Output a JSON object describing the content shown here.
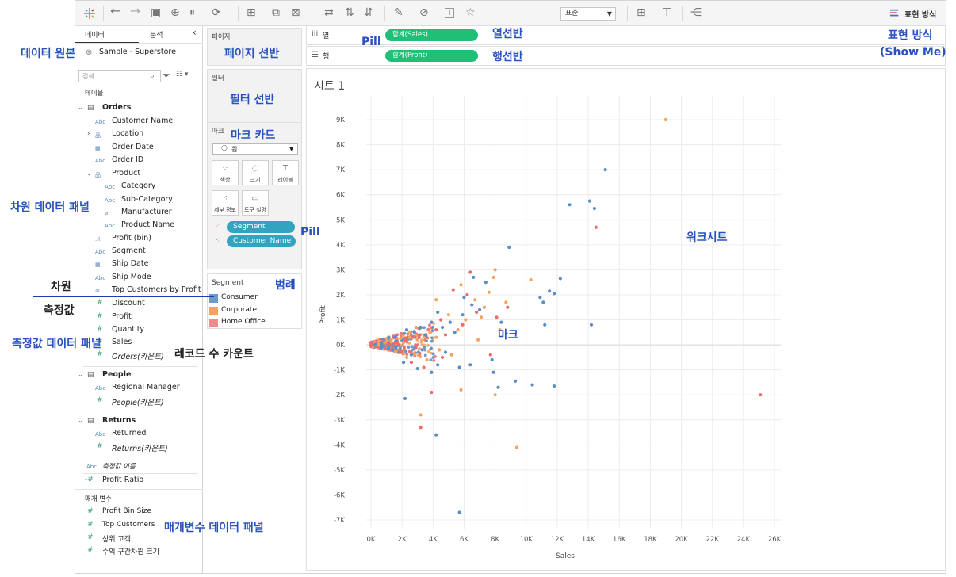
{
  "toolbar": {
    "icons": [
      "tableau-logo-icon",
      "back-arrow-icon",
      "forward-arrow-icon",
      "save-icon",
      "new-datasource-icon",
      "pause-icon",
      "refresh-icon",
      "new-sheet-icon",
      "duplicate-icon",
      "clear-sheet-icon",
      "swap-icon",
      "sort-asc-icon",
      "sort-desc-icon",
      "highlight-icon",
      "group-icon",
      "label-icon",
      "pin-icon",
      "fit-icon",
      "presentation-icon",
      "share-icon"
    ],
    "fit_select": "표준",
    "show_me_label": "표현 방식"
  },
  "datapanel": {
    "tab_data": "데이터",
    "tab_analysis": "분석",
    "collapse_icon": "‹",
    "datasource": "Sample - Superstore",
    "search_placeholder": "검색",
    "tables_header": "테이블",
    "orders": {
      "name": "Orders",
      "fields": [
        {
          "type": "Abc",
          "label": "Customer Name"
        },
        {
          "type": "geo",
          "label": "Location"
        },
        {
          "type": "date",
          "label": "Order Date"
        },
        {
          "type": "Abc",
          "label": "Order ID"
        },
        {
          "type": "hier",
          "label": "Product"
        },
        {
          "type": "Abc",
          "label": "Category"
        },
        {
          "type": "Abc",
          "label": "Sub-Category"
        },
        {
          "type": "clip",
          "label": "Manufacturer"
        },
        {
          "type": "Abc",
          "label": "Product Name"
        },
        {
          "type": "bin",
          "label": "Profit (bin)"
        },
        {
          "type": "Abc",
          "label": "Segment"
        },
        {
          "type": "date",
          "label": "Ship Date"
        },
        {
          "type": "Abc",
          "label": "Ship Mode"
        },
        {
          "type": "set",
          "label": "Top Customers by Profit"
        }
      ],
      "measures": [
        "Discount",
        "Profit",
        "Quantity",
        "Sales",
        "Orders(카운트)"
      ]
    },
    "people": {
      "name": "People",
      "field": "Regional Manager",
      "count": "People(카운트)"
    },
    "returns": {
      "name": "Returns",
      "field": "Returned",
      "count": "Returns(카운트)"
    },
    "measure_names": "측정값 이름",
    "profit_ratio": "Profit Ratio",
    "params_header": "매개 변수",
    "params": [
      "Profit Bin Size",
      "Top Customers",
      "상위 고객",
      "수익 구간차원 크기"
    ]
  },
  "shelves": {
    "pages_label": "페이지",
    "filters_label": "필터",
    "marks_label": "마크",
    "mark_type": "원",
    "mark_buttons": [
      {
        "icon": "dots-color-icon",
        "label": "색상"
      },
      {
        "icon": "size-icon",
        "label": "크기"
      },
      {
        "icon": "label-text-icon",
        "label": "레이블"
      },
      {
        "icon": "detail-icon",
        "label": "세부 정보"
      },
      {
        "icon": "tooltip-icon",
        "label": "도구 설명"
      }
    ],
    "mark_pills": [
      "Segment",
      "Customer Name"
    ],
    "legend_title": "Segment",
    "legend": [
      {
        "label": "Consumer",
        "color": "#6a9bcb"
      },
      {
        "label": "Corporate",
        "color": "#f5a35c"
      },
      {
        "label": "Home Office",
        "color": "#ef8b8b"
      }
    ],
    "columns_label": "열",
    "rows_label": "행",
    "columns_pill": "합계(Sales)",
    "rows_pill": "합계(Profit)"
  },
  "sheet": {
    "title": "시트 1"
  },
  "annotations": {
    "datasource": "데이터 원본",
    "dimension_panel": "차원 데이터 패널",
    "dimension": "차원",
    "measure": "측정값",
    "measure_panel": "측정값 데이터 패널",
    "record_count": "레코드 수 카운트",
    "param_panel": "매개변수 데이터 패널",
    "pages_shelf": "페이지 선반",
    "filters_shelf": "필터 선반",
    "marks_card": "마크 카드",
    "pill_marks": "Pill",
    "legend": "범례",
    "pill_top": "Pill",
    "columns_shelf": "열선반",
    "rows_shelf": "행선반",
    "show_me_1": "표현 방식",
    "show_me_2": "(Show Me)",
    "worksheet": "워크시트",
    "mark": "마크"
  },
  "chart_data": {
    "type": "scatter",
    "xlabel": "Sales",
    "ylabel": "Profit",
    "xlim": [
      0,
      26000
    ],
    "ylim": [
      -7000,
      9000
    ],
    "x_ticks": [
      "0K",
      "2K",
      "4K",
      "6K",
      "8K",
      "10K",
      "12K",
      "14K",
      "16K",
      "18K",
      "20K",
      "22K",
      "24K",
      "26K"
    ],
    "y_ticks": [
      "9K",
      "8K",
      "7K",
      "6K",
      "5K",
      "4K",
      "3K",
      "2K",
      "1K",
      "0K",
      "-1K",
      "-2K",
      "-3K",
      "-4K",
      "-5K",
      "-6K",
      "-7K"
    ],
    "series": [
      {
        "name": "Consumer",
        "color": "#5b8fc4",
        "points": [
          [
            15100,
            7000
          ],
          [
            12800,
            5600
          ],
          [
            14100,
            5750
          ],
          [
            14400,
            5450
          ],
          [
            8900,
            3900
          ],
          [
            6600,
            2700
          ],
          [
            12200,
            2650
          ],
          [
            11500,
            2150
          ],
          [
            10900,
            1900
          ],
          [
            11800,
            2050
          ],
          [
            11100,
            1700
          ],
          [
            11200,
            800
          ],
          [
            14200,
            800
          ],
          [
            11800,
            -1650
          ],
          [
            7800,
            -600
          ],
          [
            7900,
            -1100
          ],
          [
            8200,
            -1700
          ],
          [
            9300,
            -1450
          ],
          [
            10400,
            -1600
          ],
          [
            5700,
            -6700
          ],
          [
            4200,
            -3600
          ],
          [
            2200,
            -2150
          ],
          [
            3900,
            -1100
          ],
          [
            4300,
            -800
          ],
          [
            6400,
            -800
          ],
          [
            5700,
            -900
          ],
          [
            3000,
            -950
          ],
          [
            2100,
            -700
          ],
          [
            6500,
            1600
          ],
          [
            5900,
            1200
          ],
          [
            7400,
            2500
          ],
          [
            4300,
            1300
          ],
          [
            3900,
            900
          ],
          [
            5100,
            900
          ],
          [
            3200,
            700
          ],
          [
            2800,
            500
          ],
          [
            2400,
            300
          ],
          [
            2000,
            200
          ],
          [
            1600,
            150
          ],
          [
            1200,
            100
          ],
          [
            900,
            60
          ],
          [
            600,
            40
          ],
          [
            300,
            20
          ],
          [
            1400,
            -200
          ],
          [
            1800,
            -300
          ],
          [
            2600,
            -400
          ],
          [
            1100,
            -150
          ],
          [
            700,
            -80
          ],
          [
            3500,
            400
          ],
          [
            4600,
            700
          ],
          [
            5400,
            500
          ],
          [
            6000,
            1900
          ],
          [
            7000,
            1400
          ],
          [
            8400,
            900
          ],
          [
            2300,
            600
          ],
          [
            1500,
            300
          ],
          [
            3300,
            -200
          ],
          [
            4800,
            -300
          ]
        ]
      },
      {
        "name": "Corporate",
        "color": "#f5a35c",
        "points": [
          [
            19000,
            9000
          ],
          [
            9400,
            -4100
          ],
          [
            8000,
            3000
          ],
          [
            7900,
            2700
          ],
          [
            10300,
            2600
          ],
          [
            7600,
            2100
          ],
          [
            8700,
            1700
          ],
          [
            7300,
            1500
          ],
          [
            5800,
            2400
          ],
          [
            4200,
            1800
          ],
          [
            3200,
            -2800
          ],
          [
            5800,
            -1800
          ],
          [
            8000,
            -2000
          ],
          [
            6100,
            1000
          ],
          [
            5000,
            1200
          ],
          [
            3800,
            500
          ],
          [
            2900,
            700
          ],
          [
            2500,
            300
          ],
          [
            1900,
            250
          ],
          [
            1300,
            120
          ],
          [
            900,
            80
          ],
          [
            500,
            30
          ],
          [
            1600,
            -250
          ],
          [
            2300,
            -500
          ],
          [
            2800,
            -350
          ],
          [
            3600,
            -600
          ],
          [
            4400,
            -200
          ],
          [
            5600,
            600
          ],
          [
            6700,
            1800
          ],
          [
            7100,
            1100
          ],
          [
            8300,
            600
          ],
          [
            6900,
            200
          ],
          [
            3000,
            200
          ],
          [
            2100,
            100
          ],
          [
            4200,
            300
          ],
          [
            5200,
            -400
          ]
        ]
      },
      {
        "name": "Home Office",
        "color": "#ef6b6b",
        "points": [
          [
            25100,
            -2000
          ],
          [
            14500,
            4700
          ],
          [
            3200,
            -3300
          ],
          [
            5300,
            2200
          ],
          [
            6400,
            2900
          ],
          [
            8800,
            1500
          ],
          [
            8100,
            1100
          ],
          [
            6800,
            1300
          ],
          [
            4500,
            1000
          ],
          [
            3900,
            -1900
          ],
          [
            4200,
            600
          ],
          [
            3100,
            300
          ],
          [
            2200,
            200
          ],
          [
            1700,
            100
          ],
          [
            1100,
            50
          ],
          [
            1900,
            -300
          ],
          [
            2600,
            -700
          ],
          [
            3400,
            -900
          ],
          [
            4600,
            -500
          ],
          [
            5900,
            800
          ],
          [
            7700,
            -400
          ],
          [
            6200,
            2000
          ],
          [
            4800,
            400
          ],
          [
            2900,
            -100
          ]
        ]
      }
    ]
  }
}
